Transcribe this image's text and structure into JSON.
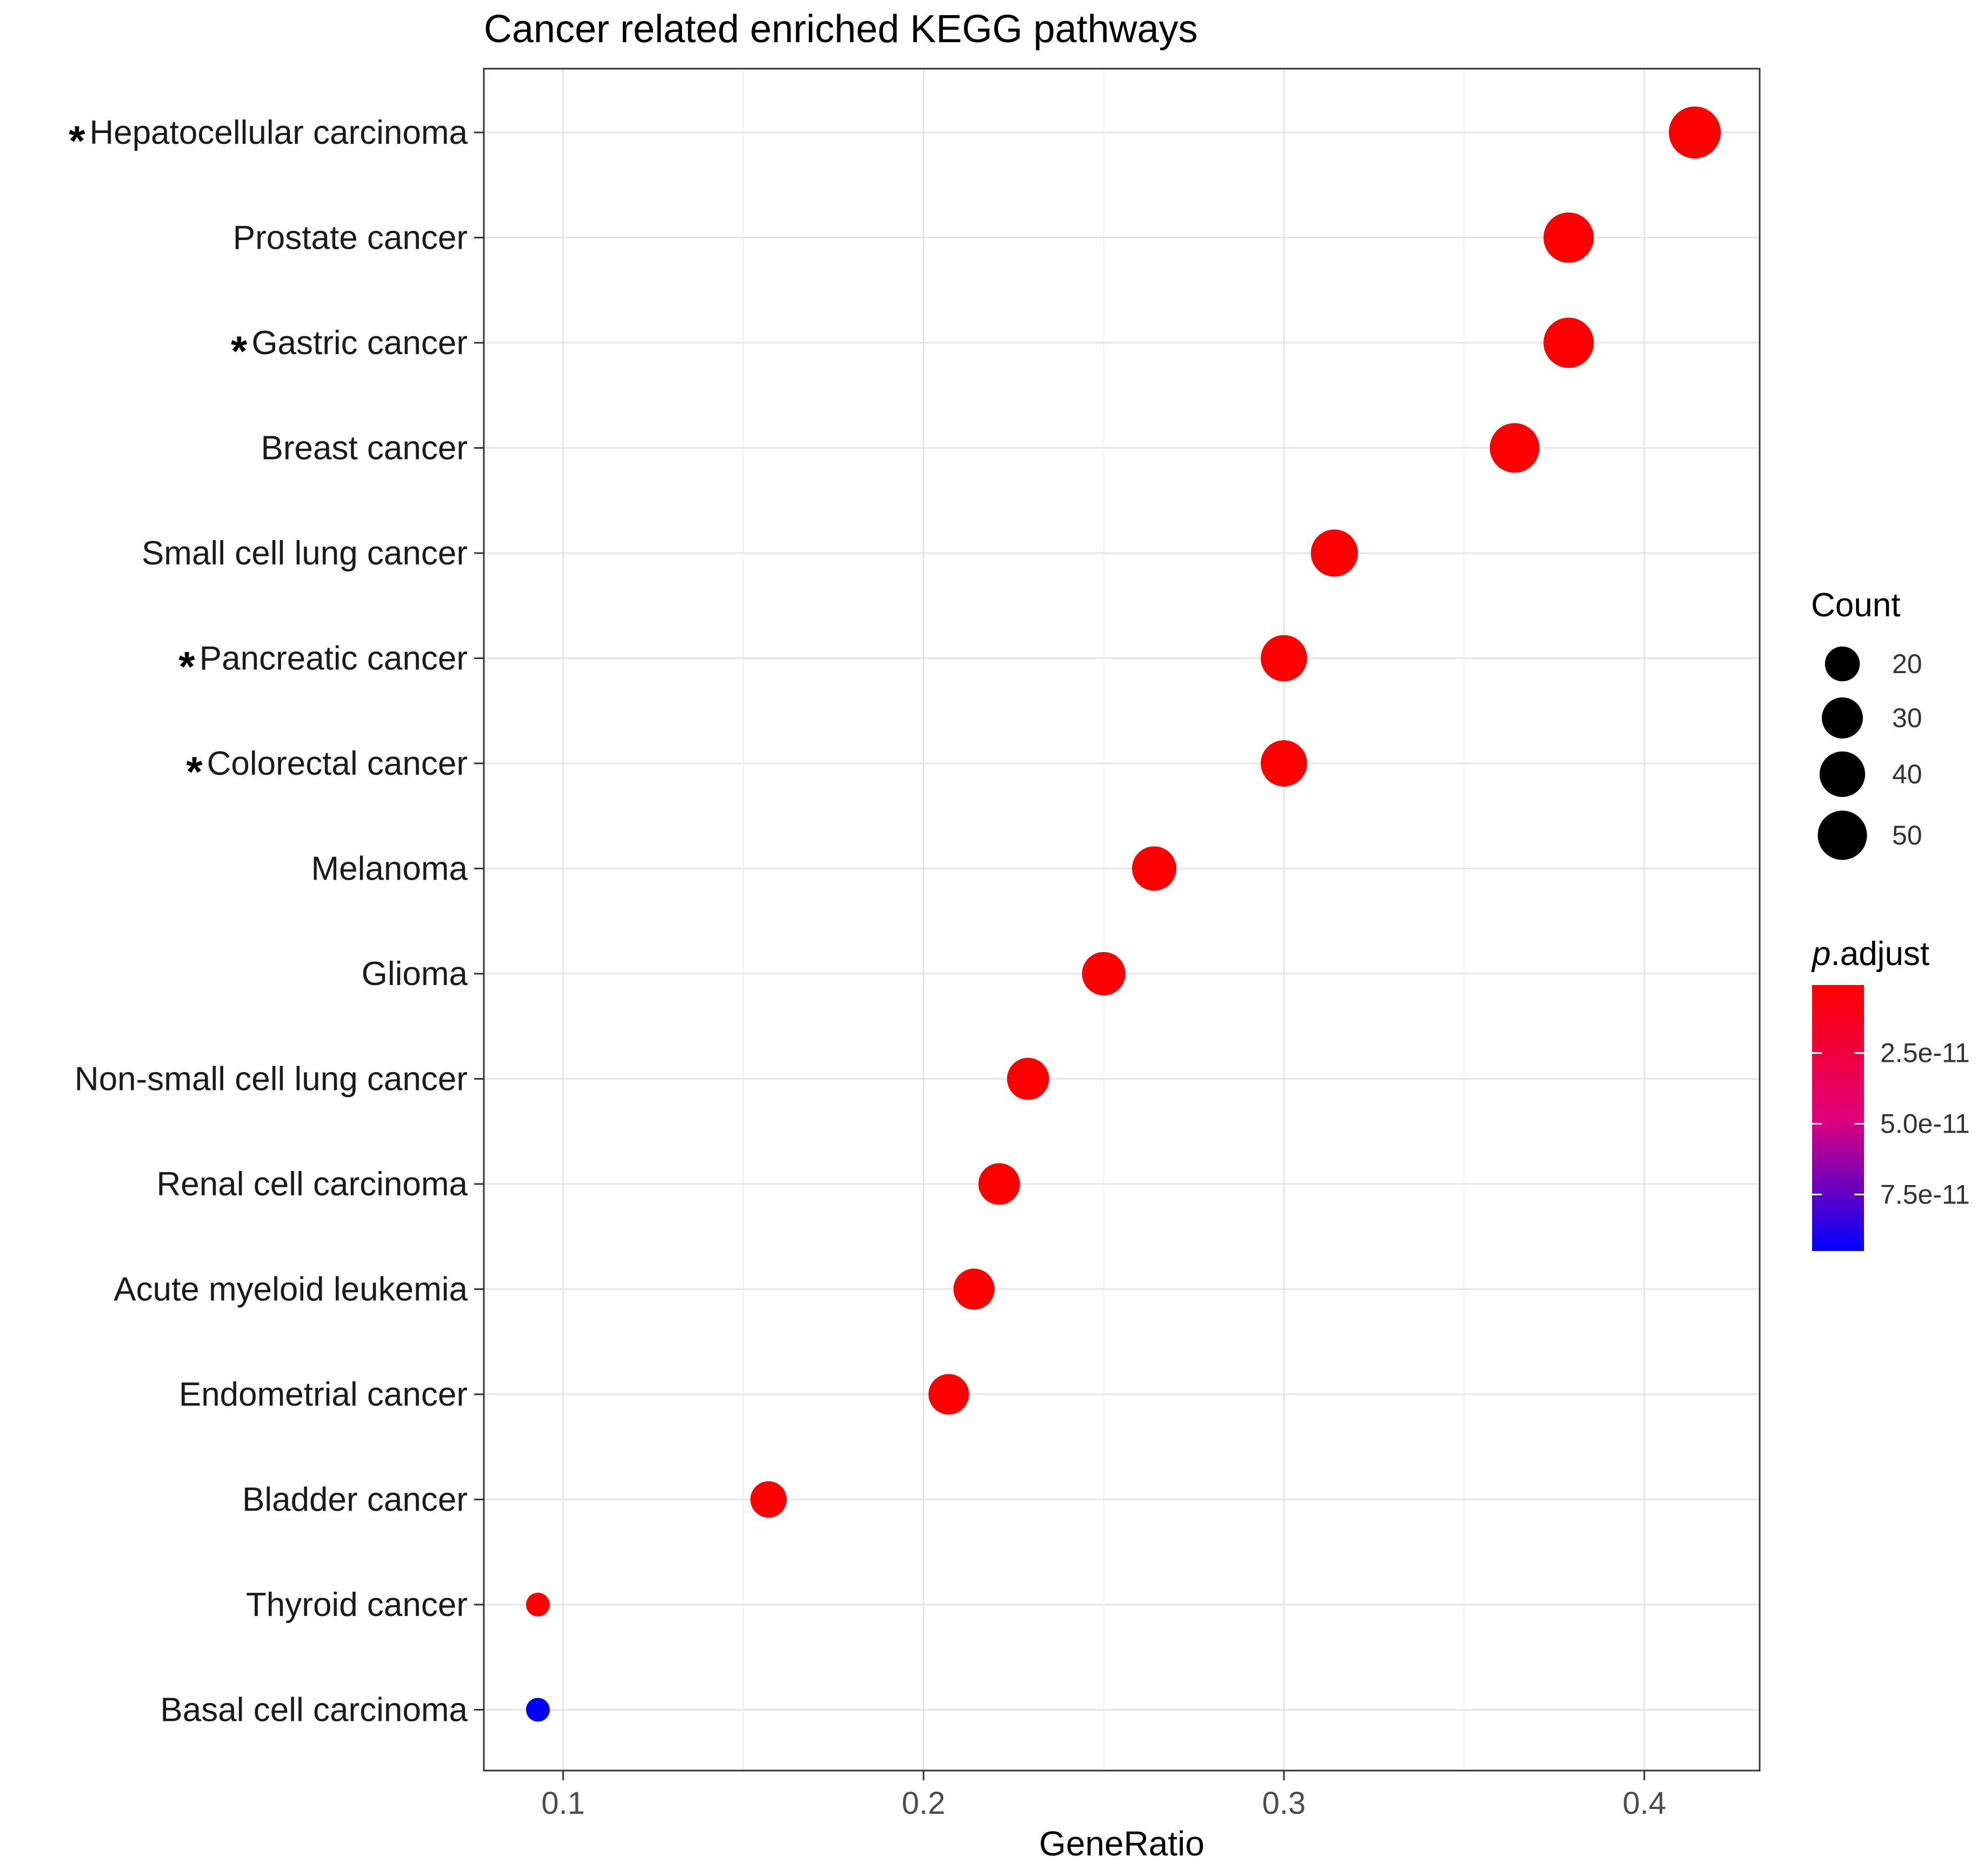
{
  "chart_data": {
    "type": "scatter",
    "title": "Cancer related enriched KEGG pathways",
    "xlabel": "GeneRatio",
    "ylabel": "",
    "xlim": [
      0.078,
      0.432
    ],
    "x_ticks": [
      0.1,
      0.2,
      0.3,
      0.4
    ],
    "x_tick_labels": [
      "0.1",
      "0.2",
      "0.3",
      "0.4"
    ],
    "grid": true,
    "legend_position": "right",
    "categories": [
      "Hepatocellular carcinoma",
      "Prostate cancer",
      "Gastric cancer",
      "Breast cancer",
      "Small cell lung cancer",
      "Pancreatic cancer",
      "Colorectal cancer",
      "Melanoma",
      "Glioma",
      "Non-small cell lung cancer",
      "Renal cell carcinoma",
      "Acute myeloid leukemia",
      "Endometrial cancer",
      "Bladder cancer",
      "Thyroid cancer",
      "Basal cell carcinoma"
    ],
    "starred": [
      true,
      false,
      true,
      false,
      false,
      true,
      true,
      false,
      false,
      false,
      false,
      false,
      false,
      false,
      false,
      false
    ],
    "star_symbol": "*",
    "points": [
      {
        "x": 0.414,
        "count": 58,
        "p_adjust": 1e-12
      },
      {
        "x": 0.379,
        "count": 53,
        "p_adjust": 1e-12
      },
      {
        "x": 0.379,
        "count": 53,
        "p_adjust": 1e-12
      },
      {
        "x": 0.364,
        "count": 51,
        "p_adjust": 1e-12
      },
      {
        "x": 0.314,
        "count": 44,
        "p_adjust": 1e-12
      },
      {
        "x": 0.3,
        "count": 42,
        "p_adjust": 1e-12
      },
      {
        "x": 0.3,
        "count": 42,
        "p_adjust": 1e-12
      },
      {
        "x": 0.264,
        "count": 37,
        "p_adjust": 1e-12
      },
      {
        "x": 0.25,
        "count": 35,
        "p_adjust": 1e-12
      },
      {
        "x": 0.229,
        "count": 32,
        "p_adjust": 1e-12
      },
      {
        "x": 0.221,
        "count": 31,
        "p_adjust": 1e-12
      },
      {
        "x": 0.214,
        "count": 30,
        "p_adjust": 1e-12
      },
      {
        "x": 0.207,
        "count": 29,
        "p_adjust": 1e-12
      },
      {
        "x": 0.157,
        "count": 22,
        "p_adjust": 1e-12
      },
      {
        "x": 0.093,
        "count": 13,
        "p_adjust": 2e-12
      },
      {
        "x": 0.093,
        "count": 13,
        "p_adjust": 9.5e-11
      }
    ],
    "size_legend": {
      "title": "Count",
      "values": [
        20,
        30,
        40,
        50
      ],
      "labels": [
        "20",
        "30",
        "40",
        "50"
      ]
    },
    "color_legend": {
      "title_italic": "p",
      "title_rest": ".adjust",
      "range": [
        1e-12,
        9.5e-11
      ],
      "ticks": [
        2.5e-11,
        5e-11,
        7.5e-11
      ],
      "tick_labels": [
        "2.5e-11",
        "5.0e-11",
        "7.5e-11"
      ],
      "low_color": "#ff0000",
      "high_color": "#0000ff"
    }
  }
}
